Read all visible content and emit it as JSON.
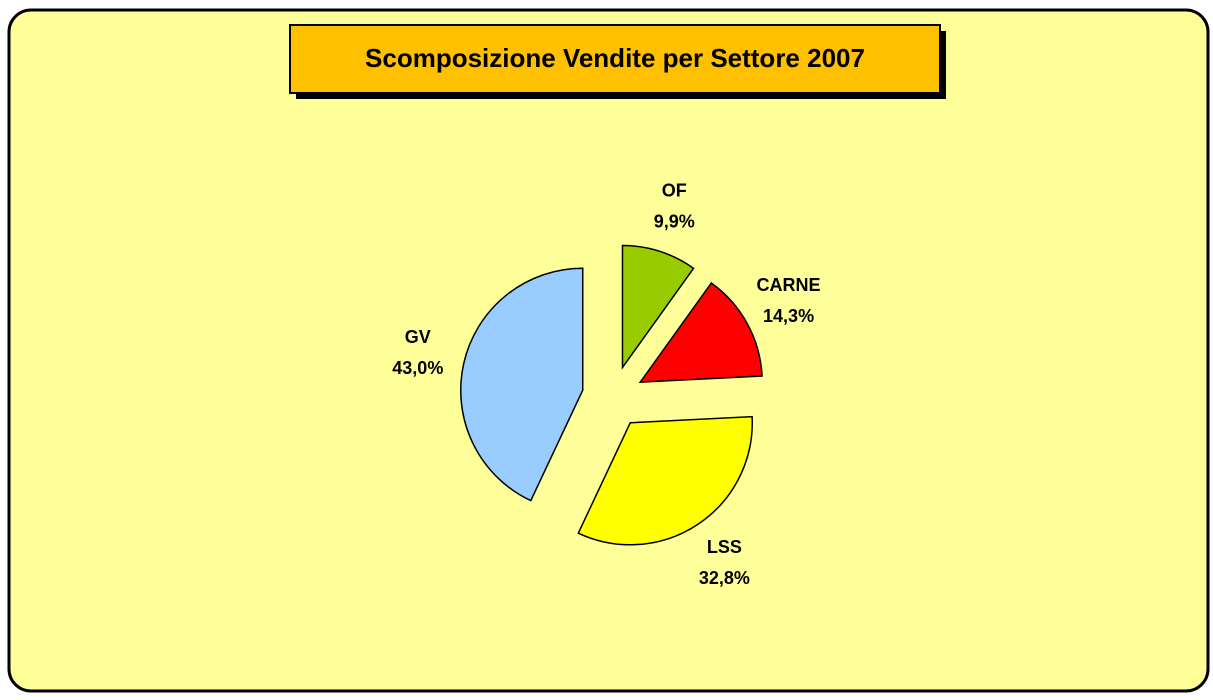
{
  "chart_data": {
    "type": "pie",
    "title": "Scomposizione Vendite per  Settore 2007",
    "categories": [
      "OF",
      "CARNE",
      "LSS",
      "GV"
    ],
    "values": [
      9.9,
      14.3,
      32.8,
      43.0
    ],
    "value_labels": [
      "9,9%",
      "14,3%",
      "32,8%",
      "43,0%"
    ],
    "colors": [
      "#99CC00",
      "#FF0000",
      "#FFFF00",
      "#99CCFF"
    ],
    "exploded": true
  }
}
